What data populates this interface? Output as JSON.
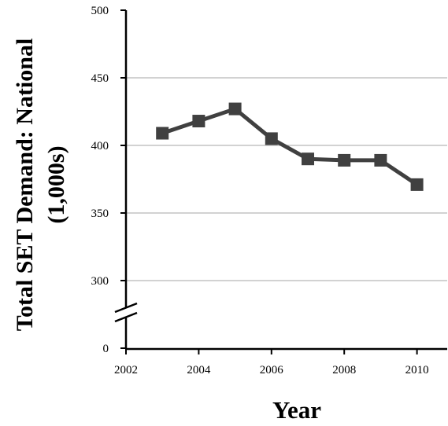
{
  "chart_data": {
    "type": "line",
    "title": "",
    "xlabel": "Year",
    "ylabel_line1": "Total SET Demand: National",
    "ylabel_line2": "(1,000s)",
    "x": [
      2003,
      2004,
      2005,
      2006,
      2007,
      2008,
      2009,
      2010
    ],
    "series": [
      {
        "values": [
          409,
          418,
          427,
          405,
          390,
          389,
          389,
          371
        ]
      }
    ],
    "xlim": [
      2002,
      2011
    ],
    "ylim": [
      0,
      500
    ],
    "y_axis_break": "between 0 and 300",
    "x_ticks": [
      "2002",
      "2004",
      "2006",
      "2008",
      "2010"
    ],
    "y_ticks": [
      "0",
      "300",
      "350",
      "400",
      "450",
      "500"
    ],
    "grid": "horizontal",
    "legend": "none",
    "colors": {
      "series": "#404040",
      "grid": "#a6a6a6",
      "axis": "#000000"
    }
  }
}
